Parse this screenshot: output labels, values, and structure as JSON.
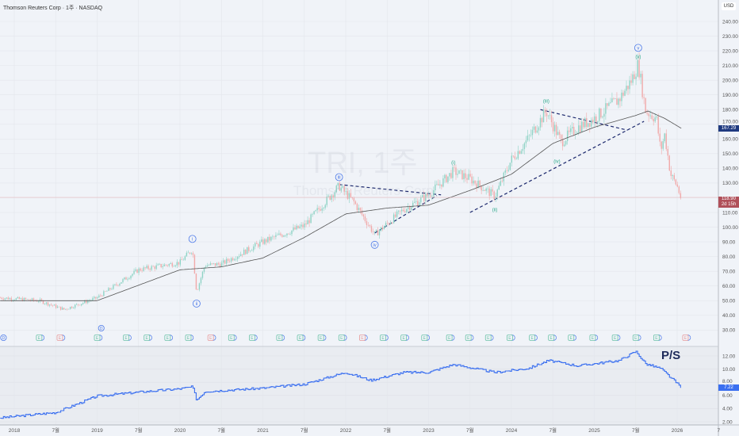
{
  "header": {
    "title": "Thomson Reuters Corp · 1주 · NASDAQ"
  },
  "watermark": {
    "symbol": "TRI, 1주",
    "name": "Thomson Reuters Corp"
  },
  "price_axis": {
    "currency": "USD",
    "ticks": [
      "240.00",
      "230.00",
      "220.00",
      "210.00",
      "200.00",
      "190.00",
      "180.00",
      "170.00",
      "160.00",
      "150.00",
      "140.00",
      "130.00",
      "110.00",
      "100.00",
      "90.00",
      "80.00",
      "70.00",
      "60.00",
      "50.00",
      "40.00",
      "30.00"
    ]
  },
  "lower_axis": {
    "ticks": [
      "12.00",
      "10.00",
      "8.00",
      "6.00",
      "4.00",
      "2.00"
    ]
  },
  "time_axis": {
    "ticks": [
      [
        "2018",
        2018
      ],
      [
        "7월",
        2018.5
      ],
      [
        "2019",
        2019
      ],
      [
        "7월",
        2019.5
      ],
      [
        "2020",
        2020
      ],
      [
        "7월",
        2020.5
      ],
      [
        "2021",
        2021
      ],
      [
        "7월",
        2021.5
      ],
      [
        "2022",
        2022
      ],
      [
        "7월",
        2022.5
      ],
      [
        "2023",
        2023
      ],
      [
        "7월",
        2023.5
      ],
      [
        "2024",
        2024
      ],
      [
        "7월",
        2024.5
      ],
      [
        "2025",
        2025
      ],
      [
        "7월",
        2025.5
      ],
      [
        "2026",
        2026
      ],
      [
        "7",
        2026.5
      ]
    ]
  },
  "labels": {
    "ma_value": "167.29",
    "last_price": "118.90",
    "countdown": "2d 15h",
    "ps_value": "7.22",
    "ps_title": "P/S"
  },
  "colors": {
    "up": "#8ed3c5",
    "down": "#f1a9a9",
    "ma": "#555555",
    "ps": "#3a6ff0",
    "ma_label": "#1f3a80",
    "price_label": "#b0505a",
    "trend": "#1e2a6e",
    "wave_blue": "#4a78e8",
    "wave_green": "#2aa88a"
  },
  "chart_data": {
    "type": "candlestick",
    "title": "Thomson Reuters Corp · 1주 · NASDAQ",
    "ylim": [
      22,
      248
    ],
    "xlim": [
      2017.83,
      2026.75
    ],
    "price_keypoints": [
      [
        2017.83,
        52
      ],
      [
        2018.3,
        50
      ],
      [
        2018.6,
        44
      ],
      [
        2019.0,
        52
      ],
      [
        2019.5,
        71
      ],
      [
        2020.0,
        76
      ],
      [
        2020.15,
        85
      ],
      [
        2020.2,
        56
      ],
      [
        2020.3,
        74
      ],
      [
        2020.5,
        75
      ],
      [
        2021.0,
        90
      ],
      [
        2021.5,
        101
      ],
      [
        2021.92,
        128
      ],
      [
        2022.1,
        117
      ],
      [
        2022.35,
        95
      ],
      [
        2022.7,
        112
      ],
      [
        2023.0,
        122
      ],
      [
        2023.3,
        138
      ],
      [
        2023.5,
        133
      ],
      [
        2023.8,
        121
      ],
      [
        2024.0,
        146
      ],
      [
        2024.2,
        160
      ],
      [
        2024.42,
        179
      ],
      [
        2024.6,
        158
      ],
      [
        2024.8,
        168
      ],
      [
        2025.0,
        174
      ],
      [
        2025.3,
        187
      ],
      [
        2025.45,
        200
      ],
      [
        2025.53,
        211
      ],
      [
        2025.62,
        179
      ],
      [
        2025.75,
        174
      ],
      [
        2025.8,
        152
      ],
      [
        2025.85,
        163
      ],
      [
        2025.92,
        136
      ],
      [
        2026.0,
        128
      ],
      [
        2026.05,
        118.9
      ]
    ],
    "ma_keypoints": [
      [
        2017.83,
        50
      ],
      [
        2019.0,
        50
      ],
      [
        2020.0,
        71
      ],
      [
        2020.5,
        73
      ],
      [
        2021.0,
        79
      ],
      [
        2021.5,
        93
      ],
      [
        2022.0,
        109
      ],
      [
        2022.5,
        113
      ],
      [
        2023.0,
        115
      ],
      [
        2023.5,
        125
      ],
      [
        2024.0,
        136
      ],
      [
        2024.5,
        157
      ],
      [
        2025.0,
        168
      ],
      [
        2025.5,
        176
      ],
      [
        2025.65,
        179
      ],
      [
        2025.85,
        174
      ],
      [
        2026.05,
        167.29
      ]
    ],
    "ps_keypoints": [
      [
        2017.83,
        2.6
      ],
      [
        2018.5,
        3.4
      ],
      [
        2019.0,
        5.9
      ],
      [
        2019.5,
        6.5
      ],
      [
        2020.0,
        7.0
      ],
      [
        2020.15,
        7.3
      ],
      [
        2020.2,
        5.3
      ],
      [
        2020.3,
        6.6
      ],
      [
        2021.0,
        7.1
      ],
      [
        2021.5,
        7.7
      ],
      [
        2022.0,
        9.5
      ],
      [
        2022.3,
        8.3
      ],
      [
        2022.7,
        9.5
      ],
      [
        2023.0,
        9.5
      ],
      [
        2023.3,
        10.7
      ],
      [
        2023.8,
        9.5
      ],
      [
        2024.2,
        10.1
      ],
      [
        2024.45,
        11.3
      ],
      [
        2024.8,
        10.5
      ],
      [
        2025.3,
        11.3
      ],
      [
        2025.5,
        12.7
      ],
      [
        2025.62,
        10.8
      ],
      [
        2025.8,
        10.1
      ],
      [
        2026.05,
        7.22
      ]
    ],
    "waves": [
      {
        "label": "i",
        "t": 2020.15,
        "p": 92,
        "style": "circle"
      },
      {
        "label": "ii",
        "t": 2020.2,
        "p": 48,
        "style": "circle"
      },
      {
        "label": "iii",
        "t": 2021.92,
        "p": 134,
        "style": "circle"
      },
      {
        "label": "iv",
        "t": 2022.35,
        "p": 88,
        "style": "circle"
      },
      {
        "label": "v",
        "t": 2025.53,
        "p": 222,
        "style": "circle"
      },
      {
        "label": "(i)",
        "t": 2023.3,
        "p": 144,
        "style": "plain"
      },
      {
        "label": "(ii)",
        "t": 2023.8,
        "p": 112,
        "style": "plain"
      },
      {
        "label": "(iii)",
        "t": 2024.42,
        "p": 186,
        "style": "plain"
      },
      {
        "label": "(iv)",
        "t": 2024.55,
        "p": 145,
        "style": "plain"
      },
      {
        "label": "(v)",
        "t": 2025.53,
        "p": 216,
        "style": "plain"
      }
    ],
    "trendlines": [
      [
        [
          2021.92,
          129
        ],
        [
          2023.15,
          122
        ]
      ],
      [
        [
          2022.35,
          96
        ],
        [
          2023.1,
          121.5
        ]
      ],
      [
        [
          2024.35,
          180
        ],
        [
          2025.4,
          166
        ]
      ],
      [
        [
          2023.5,
          110
        ],
        [
          2025.6,
          172
        ]
      ]
    ],
    "events": [
      {
        "t": 2017.87,
        "type": "D"
      },
      {
        "t": 2018.3,
        "type": "E"
      },
      {
        "t": 2018.55,
        "type": "E-"
      },
      {
        "t": 2019.0,
        "type": "E"
      },
      {
        "t": 2019.05,
        "type": "D"
      },
      {
        "t": 2019.35,
        "type": "E"
      },
      {
        "t": 2019.6,
        "type": "E"
      },
      {
        "t": 2019.85,
        "type": "E"
      },
      {
        "t": 2020.1,
        "type": "E"
      },
      {
        "t": 2020.37,
        "type": "E-"
      },
      {
        "t": 2020.62,
        "type": "E"
      },
      {
        "t": 2020.87,
        "type": "E"
      },
      {
        "t": 2021.2,
        "type": "E"
      },
      {
        "t": 2021.45,
        "type": "E"
      },
      {
        "t": 2021.7,
        "type": "E"
      },
      {
        "t": 2021.95,
        "type": "E"
      },
      {
        "t": 2022.2,
        "type": "E-"
      },
      {
        "t": 2022.45,
        "type": "E"
      },
      {
        "t": 2022.7,
        "type": "E"
      },
      {
        "t": 2022.95,
        "type": "E"
      },
      {
        "t": 2023.25,
        "type": "E"
      },
      {
        "t": 2023.48,
        "type": "E"
      },
      {
        "t": 2023.72,
        "type": "E"
      },
      {
        "t": 2023.98,
        "type": "E"
      },
      {
        "t": 2024.25,
        "type": "E"
      },
      {
        "t": 2024.48,
        "type": "E"
      },
      {
        "t": 2024.72,
        "type": "E"
      },
      {
        "t": 2024.98,
        "type": "E"
      },
      {
        "t": 2025.25,
        "type": "E"
      },
      {
        "t": 2025.5,
        "type": "E"
      },
      {
        "t": 2025.75,
        "type": "E"
      },
      {
        "t": 2026.1,
        "type": "E-"
      }
    ]
  }
}
